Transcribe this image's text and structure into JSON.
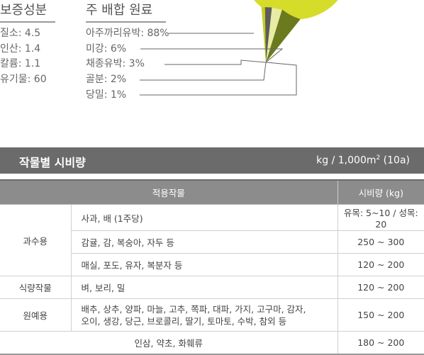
{
  "guarantee": {
    "title": "보증성분",
    "items": [
      "질소: 4.5",
      "인산: 1.4",
      "칼륨: 1.1",
      "유기물: 60"
    ]
  },
  "ingredients": {
    "title": "주 배합 원료",
    "items": [
      "아주까리유박: 88%",
      "미강: 6%",
      "채종유박: 3%",
      "골분: 2%",
      "당밀: 1%"
    ]
  },
  "chart_data": {
    "type": "pie",
    "slices": [
      {
        "label": "아주까리유박",
        "value": 88,
        "color": "#d5dc2a"
      },
      {
        "label": "미강",
        "value": 6,
        "color": "#6b7a1f"
      },
      {
        "label": "채종유박",
        "value": 3,
        "color": "#e8eba6"
      },
      {
        "label": "골분",
        "value": 2,
        "color": "#5c5c5c"
      },
      {
        "label": "당밀",
        "value": 1,
        "color": "#c5cc24"
      }
    ]
  },
  "table_title": "작물별 시비량",
  "table_unit": {
    "text": "kg / 1,000m",
    "sup": "2",
    "suffix": " (10a)"
  },
  "table": {
    "headers": [
      "적용작물",
      "시비량 (kg)"
    ],
    "groups": [
      {
        "category": "과수용",
        "rows": [
          {
            "crop": "사과, 배 (1주당)",
            "amount": "유목: 5~10 / 성목: 20"
          },
          {
            "crop": "감귤, 감, 복숭아, 자두 등",
            "amount": "250 ~ 300"
          },
          {
            "crop": "매실, 포도, 유자, 복분자 등",
            "amount": "120 ~ 200"
          }
        ]
      },
      {
        "category": "식량작물",
        "rows": [
          {
            "crop": "벼, 보리, 밀",
            "amount": "120 ~ 200"
          }
        ]
      },
      {
        "category": "원예용",
        "rows": [
          {
            "crop": "배추, 상추, 양파, 마늘, 고추, 쪽파, 대파, 가지, 고구마, 감자, 오이, 생강, 당근, 브로콜리, 딸기, 토마토, 수박, 참외 등",
            "amount": "150 ~ 200"
          }
        ]
      }
    ],
    "footer": {
      "crop": "인삼, 약초, 화훼류",
      "amount": "180 ~ 200"
    }
  }
}
